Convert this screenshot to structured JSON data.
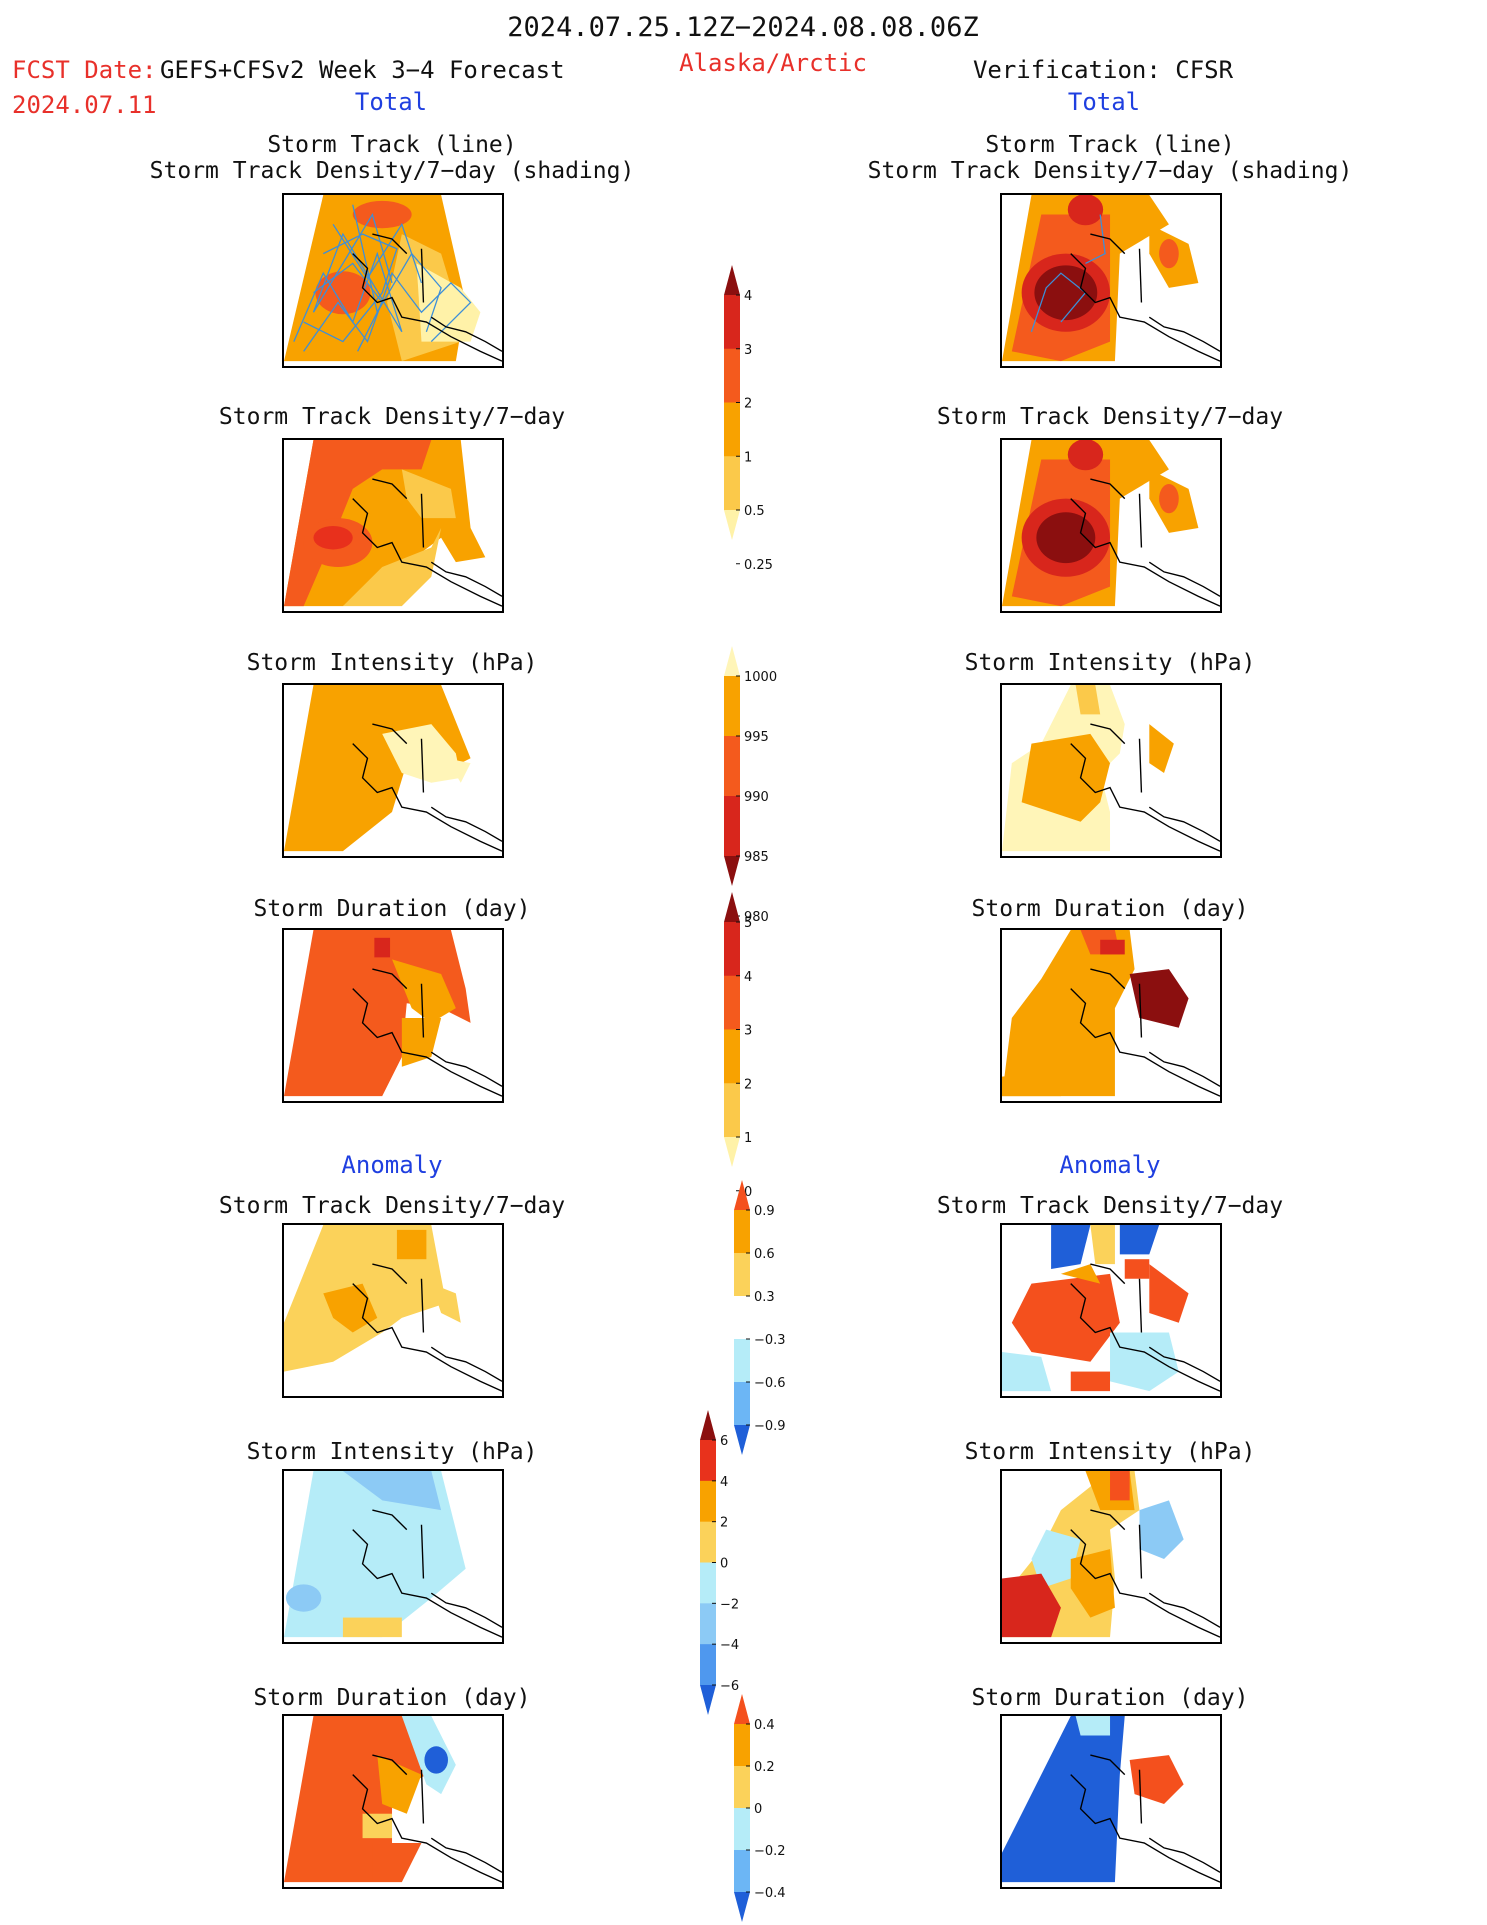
{
  "header": {
    "period": "2024.07.25.12Z−2024.08.08.06Z",
    "fcst_label": "FCST Date:",
    "fcst_date": "2024.07.11",
    "model": "GEFS+CFSv2 Week 3−4 Forecast",
    "region": "Alaska/Arctic",
    "verification": "Verification: CFSR"
  },
  "sections": {
    "total": "Total",
    "anomaly": "Anomaly"
  },
  "titles": {
    "track_line": "Storm Track (line)",
    "track_density_shading": "Storm Track Density/7−day (shading)",
    "track_density": "Storm Track Density/7−day",
    "intensity": "Storm Intensity (hPa)",
    "duration": "Storm Duration (day)"
  },
  "colorbars": {
    "density_total": {
      "labels": [
        "4",
        "3",
        "2",
        "1",
        "0.5",
        "0.25"
      ],
      "colors": [
        "#8b0f0f",
        "#d8261c",
        "#f45a1d",
        "#f8a200",
        "#fbc94a",
        "#fff2a8"
      ]
    },
    "intensity_total": {
      "labels": [
        "1000",
        "995",
        "990",
        "985",
        "980"
      ],
      "colors": [
        "#fff5b8",
        "#f8a200",
        "#f45a1d",
        "#d8261c",
        "#8b0f0f"
      ]
    },
    "duration_total": {
      "labels": [
        "5",
        "4",
        "3",
        "2",
        "1",
        "0"
      ],
      "colors": [
        "#8b0f0f",
        "#d8261c",
        "#f45a1d",
        "#f8a200",
        "#fbc94a",
        "#fff2a8"
      ]
    },
    "density_anom": {
      "labels": [
        "0.9",
        "0.6",
        "0.3",
        "−0.3",
        "−0.6",
        "−0.9"
      ],
      "colors": [
        "#f4501d",
        "#f8a200",
        "#fbd25a",
        "#ffffff",
        "#b5ecf8",
        "#6cb6f5",
        "#1f5fd8"
      ]
    },
    "intensity_anom": {
      "labels": [
        "6",
        "4",
        "2",
        "0",
        "−2",
        "−4",
        "−6"
      ],
      "colors": [
        "#8b0f0f",
        "#e8321c",
        "#f8a200",
        "#fbd25a",
        "#b5ecf8",
        "#8ccaf5",
        "#4f98ee",
        "#1f5fd8"
      ]
    },
    "duration_anom": {
      "labels": [
        "0.4",
        "0.2",
        "0",
        "−0.2",
        "−0.4"
      ],
      "colors": [
        "#f4501d",
        "#f8a200",
        "#fbd25a",
        "#b5ecf8",
        "#6cb6f5",
        "#1f5fd8"
      ]
    }
  }
}
